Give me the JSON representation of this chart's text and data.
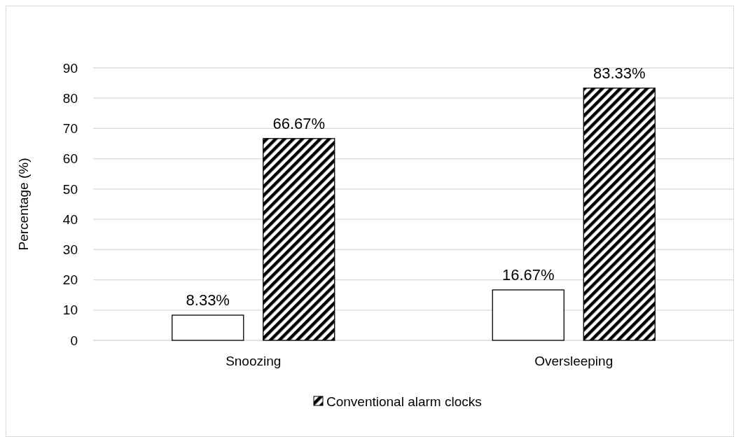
{
  "chart_data": {
    "type": "bar",
    "ylabel": "Percentage (%)",
    "categories": [
      "Snoozing",
      "Oversleeping"
    ],
    "series": [
      {
        "color": "#ffffff",
        "values": [
          8.33,
          16.67
        ],
        "value_labels": [
          "8.33%",
          "16.67%"
        ]
      },
      {
        "name": "Conventional alarm clocks",
        "color": "#000000",
        "values": [
          66.67,
          83.33
        ],
        "value_labels": [
          "66.67%",
          "83.33%"
        ]
      }
    ],
    "ylim": [
      0,
      90
    ],
    "yticks": [
      0,
      10,
      20,
      30,
      40,
      50,
      60,
      70,
      80,
      90
    ],
    "grid": "y",
    "legend": "bottom"
  }
}
